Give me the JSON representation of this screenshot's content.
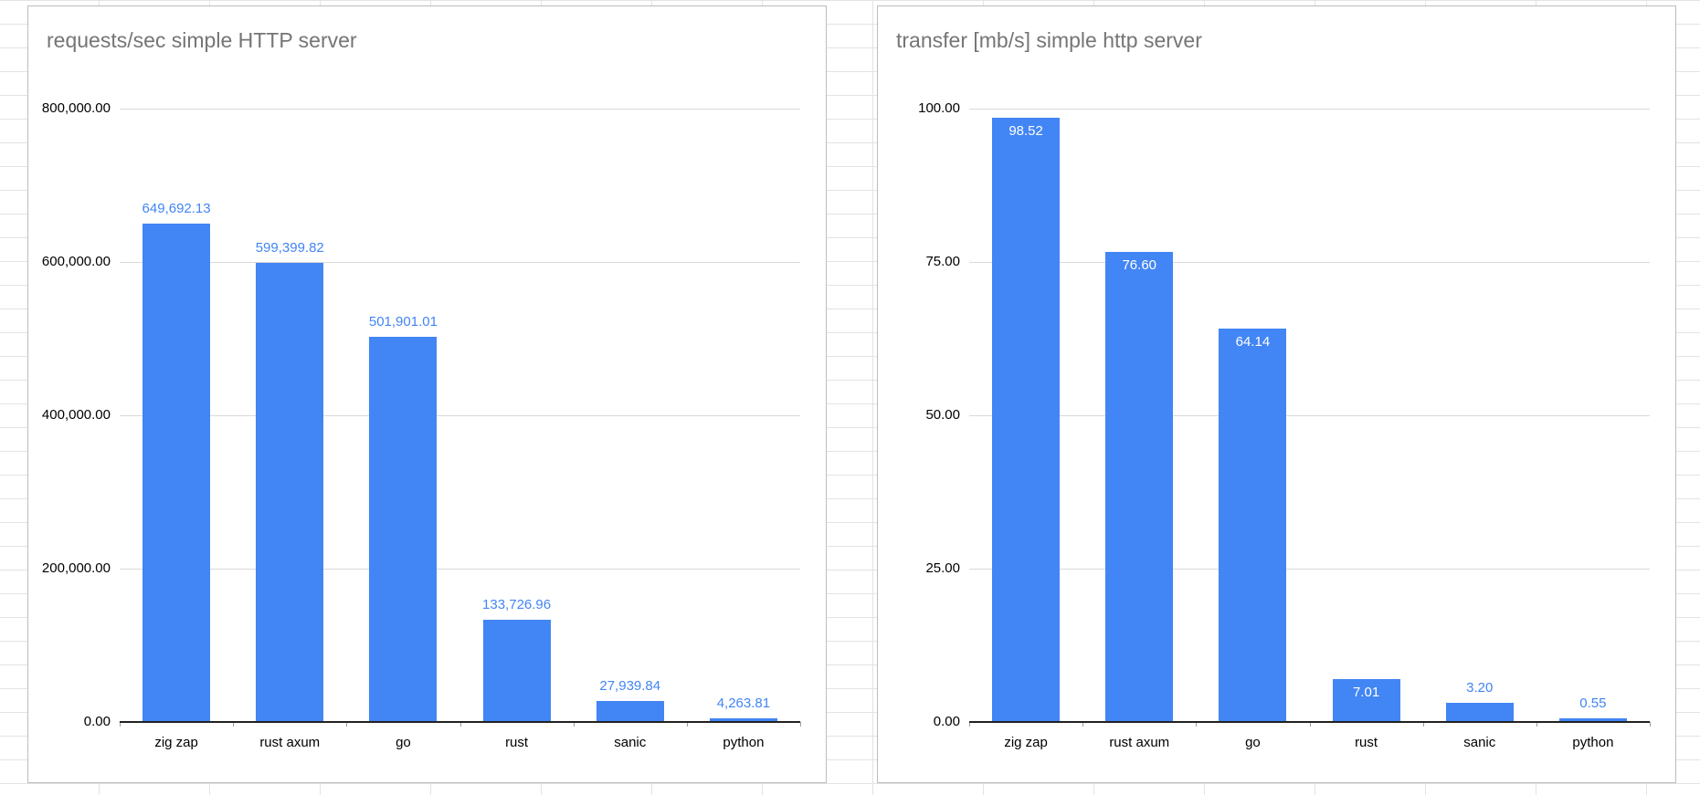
{
  "chart_data": [
    {
      "type": "bar",
      "title": "requests/sec simple HTTP server",
      "categories": [
        "zig zap",
        "rust axum",
        "go",
        "rust",
        "sanic",
        "python"
      ],
      "values": [
        649692.13,
        599399.82,
        501901.01,
        133726.96,
        27939.84,
        4263.81
      ],
      "value_labels": [
        "649,692.13",
        "599,399.82",
        "501,901.01",
        "133,726.96",
        "27,939.84",
        "4,263.81"
      ],
      "label_placements": [
        "above",
        "above",
        "above",
        "above",
        "above",
        "above"
      ],
      "y_ticks": [
        "800,000.00",
        "600,000.00",
        "400,000.00",
        "200,000.00",
        "0.00"
      ],
      "ylim": [
        0,
        800000
      ],
      "y_max": 800000,
      "xlabel": "",
      "ylabel": "",
      "grid": true,
      "legend": "none",
      "bar_color": "#4285f4",
      "data_label_color": "#4285f4",
      "inside_label_color": "#ffffff"
    },
    {
      "type": "bar",
      "title": "transfer [mb/s] simple http server",
      "categories": [
        "zig zap",
        "rust axum",
        "go",
        "rust",
        "sanic",
        "python"
      ],
      "values": [
        98.52,
        76.6,
        64.14,
        7.01,
        3.2,
        0.55
      ],
      "value_labels": [
        "98.52",
        "76.60",
        "64.14",
        "7.01",
        "3.20",
        "0.55"
      ],
      "label_placements": [
        "inside",
        "inside",
        "inside",
        "inside",
        "above",
        "above"
      ],
      "y_ticks": [
        "100.00",
        "75.00",
        "50.00",
        "25.00",
        "0.00"
      ],
      "ylim": [
        0,
        100
      ],
      "y_max": 100,
      "xlabel": "",
      "ylabel": "",
      "grid": true,
      "legend": "none",
      "bar_color": "#4285f4",
      "data_label_color": "#4285f4",
      "inside_label_color": "#ffffff"
    }
  ]
}
